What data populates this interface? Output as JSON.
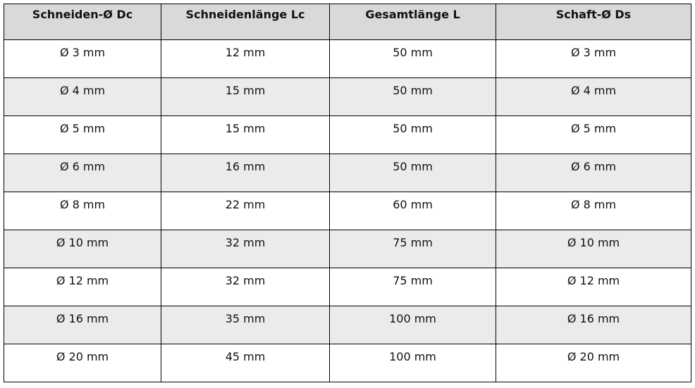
{
  "table": {
    "headers": [
      "Schneiden-Ø Dc",
      "Schneidenlänge Lc",
      "Gesamtlänge L",
      "Schaft-Ø Ds"
    ],
    "rows": [
      [
        "Ø 3 mm",
        "12 mm",
        "50 mm",
        "Ø 3 mm"
      ],
      [
        "Ø 4 mm",
        "15 mm",
        "50 mm",
        "Ø 4 mm"
      ],
      [
        "Ø 5 mm",
        "15 mm",
        "50 mm",
        "Ø 5 mm"
      ],
      [
        "Ø 6 mm",
        "16 mm",
        "50 mm",
        "Ø 6 mm"
      ],
      [
        "Ø 8 mm",
        "22 mm",
        "60 mm",
        "Ø 8 mm"
      ],
      [
        "Ø 10 mm",
        "32 mm",
        "75 mm",
        "Ø 10 mm"
      ],
      [
        "Ø 12 mm",
        "32 mm",
        "75 mm",
        "Ø 12 mm"
      ],
      [
        "Ø 16 mm",
        "35 mm",
        "100 mm",
        "Ø 16 mm"
      ],
      [
        "Ø 20 mm",
        "45 mm",
        "100 mm",
        "Ø 20 mm"
      ]
    ]
  },
  "colors": {
    "header_bg": "#d9d9d9",
    "alt_row_bg": "#ebebeb",
    "border": "#000000"
  }
}
